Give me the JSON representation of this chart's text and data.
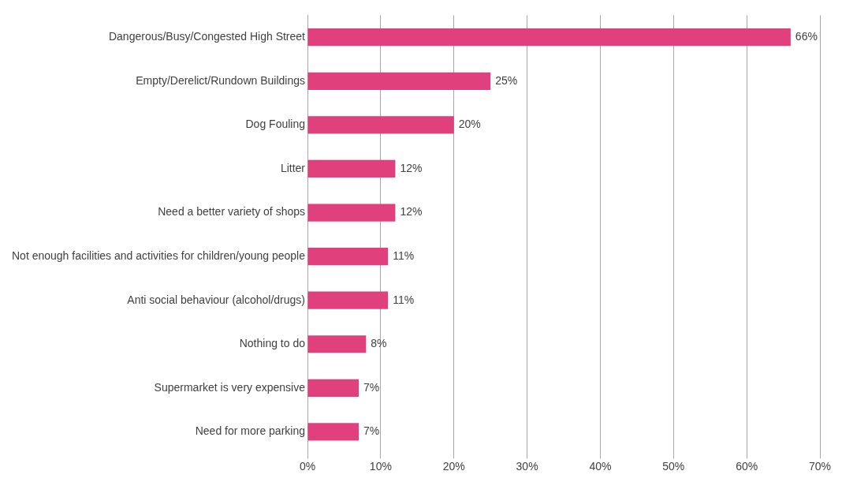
{
  "chart_data": {
    "type": "bar",
    "orientation": "horizontal",
    "categories": [
      "Dangerous/Busy/Congested High Street",
      "Empty/Derelict/Rundown Buildings",
      "Dog Fouling",
      "Litter",
      "Need a better variety of shops",
      "Not enough facilities and activities for children/young people",
      "Anti social behaviour (alcohol/drugs)",
      "Nothing to do",
      "Supermarket is very expensive",
      "Need for more parking"
    ],
    "values": [
      66,
      25,
      20,
      12,
      12,
      11,
      11,
      8,
      7,
      7
    ],
    "value_labels": [
      "66%",
      "25%",
      "20%",
      "12%",
      "12%",
      "11%",
      "11%",
      "8%",
      "7%",
      "7%"
    ],
    "color": "#e0407b",
    "xlim": [
      0,
      70
    ],
    "xticks": [
      {
        "value": 0,
        "label": "0%"
      },
      {
        "value": 10,
        "label": "10%"
      },
      {
        "value": 20,
        "label": "20%"
      },
      {
        "value": 30,
        "label": "30%"
      },
      {
        "value": 40,
        "label": "40%"
      },
      {
        "value": 50,
        "label": "50%"
      },
      {
        "value": 60,
        "label": "60%"
      },
      {
        "value": 70,
        "label": "70%"
      }
    ],
    "grid": "x",
    "legend": false
  }
}
